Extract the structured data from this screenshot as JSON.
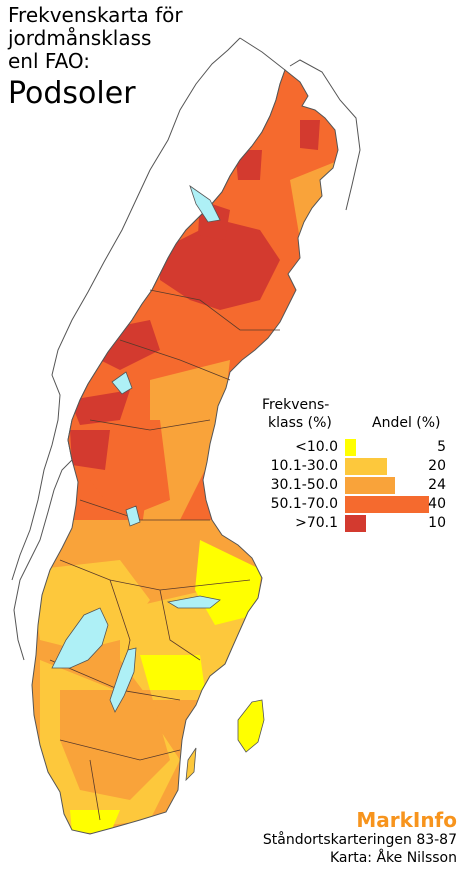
{
  "title": {
    "line1": "Frekvenskarta för",
    "line2": "jordmånsklass",
    "line3": "enl FAO:",
    "main": "Podsoler"
  },
  "legend": {
    "class_header_line1": "Frekvens-",
    "class_header_line2": "klass (%)",
    "share_header": "Andel (%)",
    "rows": [
      {
        "label": "<10.0",
        "color": "#ffff00",
        "share": 5
      },
      {
        "label": "10.1-30.0",
        "color": "#fdc83c",
        "share": 20
      },
      {
        "label": "30.1-50.0",
        "color": "#f9a33a",
        "share": 24
      },
      {
        "label": "50.1-70.0",
        "color": "#f56a2e",
        "share": 40
      },
      {
        "label": ">70.1",
        "color": "#d33a2f",
        "share": 10
      }
    ]
  },
  "footer": {
    "brand": "MarkInfo",
    "source": "Ståndortskarteringen 83-87",
    "author": "Karta: Åke Nilsson"
  },
  "colors": {
    "water": "#aef0f6",
    "outline": "#555555",
    "county_border": "#5a3a2a"
  }
}
